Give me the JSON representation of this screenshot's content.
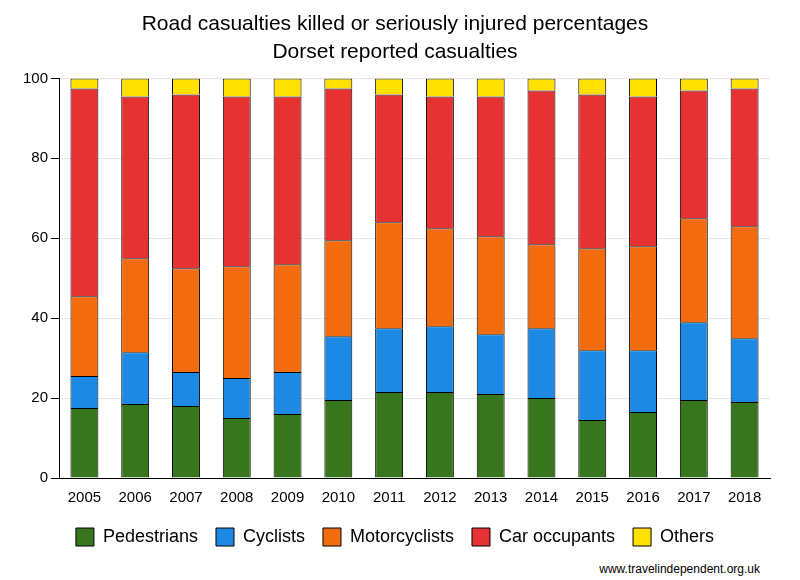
{
  "chart_data": {
    "type": "bar",
    "title": "Road casualties killed or seriously injured percentages",
    "subtitle": "Dorset reported casualties",
    "source": "www.travelindependent.org.uk",
    "categories": [
      "2005",
      "2006",
      "2007",
      "2008",
      "2009",
      "2010",
      "2011",
      "2012",
      "2013",
      "2014",
      "2015",
      "2016",
      "2017",
      "2018"
    ],
    "series": [
      {
        "name": "Pedestrians",
        "color": "#38761d",
        "values": [
          17.5,
          18.5,
          18,
          15,
          16,
          19.5,
          21.5,
          21.5,
          21,
          20,
          14.5,
          16.5,
          19.5,
          19
        ]
      },
      {
        "name": "Cyclists",
        "color": "#1e88e5",
        "values": [
          8,
          13,
          8.5,
          10,
          10.5,
          16,
          16,
          16.5,
          15,
          17.5,
          17.5,
          15.5,
          19.5,
          16
        ]
      },
      {
        "name": "Motorcyclists",
        "color": "#f26b0f",
        "values": [
          20,
          23.5,
          26,
          28,
          27,
          24,
          26.5,
          24.5,
          24.5,
          21,
          25.5,
          26,
          26,
          28
        ]
      },
      {
        "name": "Car occupants",
        "color": "#e63232",
        "values": [
          52,
          40.5,
          43.5,
          42.5,
          42,
          38,
          32,
          33,
          35,
          38.5,
          38.5,
          37.5,
          32,
          34.5
        ]
      },
      {
        "name": "Others",
        "color": "#ffe000",
        "values": [
          2.5,
          4.5,
          4,
          4.5,
          4.5,
          2.5,
          4,
          4.5,
          4.5,
          3,
          4,
          4.5,
          3,
          2.5
        ]
      }
    ],
    "stacked": true,
    "ylim": [
      0,
      100
    ],
    "yticks": [
      0,
      20,
      40,
      60,
      80,
      100
    ],
    "grid": true,
    "legend": "bottom"
  }
}
